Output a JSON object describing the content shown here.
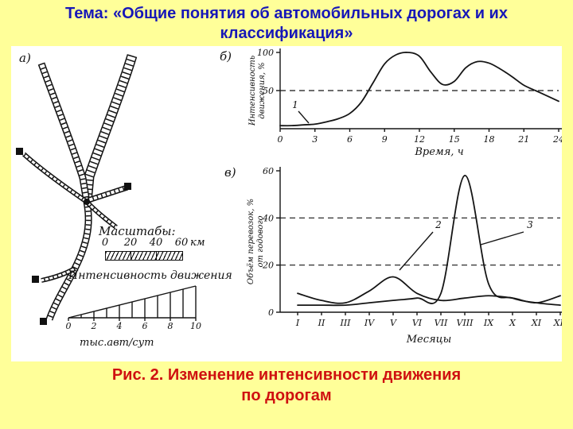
{
  "slide": {
    "title": "Тема: «Общие понятия об автомобильных дорогах и их классификация»",
    "caption": {
      "line1": "Рис. 2. Изменение интенсивности движения",
      "line2": "по дорогам"
    },
    "colors": {
      "background": "#ffff99",
      "title_color": "#1717b8",
      "caption_color": "#cf1010",
      "ink": "#151515",
      "figure_background": "#ffffff"
    }
  },
  "figure": {
    "panel_labels": {
      "map": "а)",
      "hour": "б)",
      "month": "в)"
    },
    "map_legend": {
      "scale_title": "Масштабы:",
      "scale_ticks": [
        "0",
        "20",
        "40",
        "60"
      ],
      "scale_unit": "км",
      "intensity_title": "Интенсивность движения",
      "intensity_ticks": [
        "0",
        "2",
        "4",
        "6",
        "8",
        "10"
      ],
      "intensity_unit": "тыс.авт/сут"
    }
  },
  "chart_data": [
    {
      "id": "traffic-intensity-by-hour",
      "type": "line",
      "panel_label": "б)",
      "x": [
        0,
        1,
        2,
        3,
        4,
        5,
        6,
        7,
        8,
        9,
        10,
        11,
        12,
        13,
        14,
        15,
        16,
        17,
        18,
        19,
        20,
        21,
        22,
        23,
        24
      ],
      "series": [
        {
          "name": "1",
          "values": [
            4,
            4,
            5,
            6,
            9,
            13,
            20,
            35,
            60,
            85,
            97,
            100,
            95,
            74,
            58,
            62,
            80,
            88,
            86,
            78,
            68,
            57,
            50,
            43,
            36
          ]
        }
      ],
      "xlabel": "Время, ч",
      "ylabel": "Интенсивность движения, %",
      "ylabel_lines": [
        "Интенсивность",
        "движения, %"
      ],
      "xticks": [
        0,
        3,
        6,
        9,
        12,
        15,
        18,
        21,
        24
      ],
      "yticks": [
        50,
        100
      ],
      "xlim": [
        0,
        24
      ],
      "ylim": [
        0,
        100
      ],
      "dashed_lines_y": [
        50
      ],
      "grid": false,
      "legend": "curve numbered 1 on plot"
    },
    {
      "id": "transport-volume-by-month",
      "type": "line",
      "panel_label": "в)",
      "categories": [
        "I",
        "II",
        "III",
        "IV",
        "V",
        "VI",
        "VII",
        "VIII",
        "IX",
        "X",
        "XI",
        "XII"
      ],
      "series": [
        {
          "name": "2",
          "values": [
            8,
            5,
            4,
            9,
            15,
            8,
            5,
            6,
            7,
            6,
            4,
            7
          ]
        },
        {
          "name": "3",
          "values": [
            3,
            3,
            3,
            4,
            5,
            6,
            8,
            58,
            12,
            6,
            4,
            3
          ]
        }
      ],
      "xlabel": "Месяцы",
      "ylabel": "Объём перевозок, % от годового",
      "ylabel_lines": [
        "Объём перевозок, %",
        "от годового"
      ],
      "yticks": [
        0,
        20,
        40,
        60
      ],
      "ylim": [
        0,
        60
      ],
      "dashed_lines_y": [
        20,
        40
      ],
      "grid": false,
      "legend": "curves numbered 2 and 3 on plot"
    }
  ]
}
